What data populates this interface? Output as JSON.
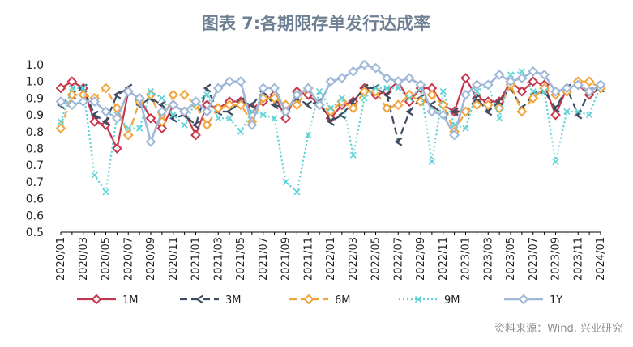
{
  "chart_data": {
    "type": "line",
    "title": "图表 7:各期限存单发行达成率",
    "source": "资料来源：Wind, 兴业研究",
    "ylim": [
      0.5,
      1.0
    ],
    "yticks": [
      "1.0",
      "1.0",
      "0.9",
      "0.9",
      "0.8",
      "0.8",
      "0.7",
      "0.7",
      "0.6",
      "0.6",
      "0.5"
    ],
    "grid": false,
    "legend_position": "bottom",
    "x": [
      "2020/01",
      "2020/02",
      "2020/03",
      "2020/04",
      "2020/05",
      "2020/06",
      "2020/07",
      "2020/08",
      "2020/09",
      "2020/10",
      "2020/11",
      "2020/12",
      "2021/01",
      "2021/02",
      "2021/03",
      "2021/04",
      "2021/05",
      "2021/06",
      "2021/07",
      "2021/08",
      "2021/09",
      "2021/10",
      "2021/11",
      "2021/12",
      "2022/01",
      "2022/02",
      "2022/03",
      "2022/04",
      "2022/05",
      "2022/06",
      "2022/07",
      "2022/08",
      "2022/09",
      "2022/10",
      "2022/11",
      "2022/12",
      "2023/01",
      "2023/02",
      "2023/03",
      "2023/04",
      "2023/05",
      "2023/06",
      "2023/07",
      "2023/08",
      "2023/09",
      "2023/10",
      "2023/11",
      "2023/12",
      "2024/01"
    ],
    "xtick_labels": [
      "2020/01",
      "2020/03",
      "2020/05",
      "2020/07",
      "2020/09",
      "2020/11",
      "2021/01",
      "2021/03",
      "2021/05",
      "2021/07",
      "2021/09",
      "2021/11",
      "2022/01",
      "2022/03",
      "2022/05",
      "2022/07",
      "2022/09",
      "2022/11",
      "2023/01",
      "2023/03",
      "2023/05",
      "2023/07",
      "2023/09",
      "2023/11",
      "2024/01"
    ],
    "series": [
      {
        "name": "1M",
        "color": "#c8364c",
        "dash": "",
        "marker": "diamond",
        "values": [
          0.93,
          0.95,
          0.93,
          0.83,
          0.82,
          0.75,
          0.92,
          0.9,
          0.84,
          0.81,
          0.88,
          0.86,
          0.79,
          0.88,
          0.87,
          0.89,
          0.89,
          0.87,
          0.89,
          0.91,
          0.84,
          0.92,
          0.91,
          0.88,
          0.84,
          0.88,
          0.89,
          0.93,
          0.91,
          0.92,
          0.95,
          0.89,
          0.93,
          0.93,
          0.88,
          0.86,
          0.96,
          0.9,
          0.89,
          0.89,
          0.95,
          0.92,
          0.95,
          0.94,
          0.85,
          0.93,
          0.94,
          0.91,
          0.93
        ]
      },
      {
        "name": "3M",
        "color": "#3e4d63",
        "dash": "9,5",
        "marker": "chevron",
        "values": [
          0.88,
          0.91,
          0.93,
          0.85,
          0.83,
          0.91,
          0.93,
          0.88,
          0.9,
          0.88,
          0.84,
          0.85,
          0.82,
          0.93,
          0.86,
          0.86,
          0.89,
          0.88,
          0.92,
          0.88,
          0.87,
          0.9,
          0.88,
          0.89,
          0.83,
          0.85,
          0.89,
          0.93,
          0.93,
          0.91,
          0.77,
          0.86,
          0.9,
          0.88,
          0.85,
          0.86,
          0.86,
          0.9,
          0.86,
          0.89,
          0.93,
          0.87,
          0.91,
          0.92,
          0.87,
          0.93,
          0.85,
          0.92,
          0.93
        ]
      },
      {
        "name": "6M",
        "color": "#f2a33a",
        "dash": "9,5",
        "marker": "diamond",
        "values": [
          0.81,
          0.91,
          0.91,
          0.9,
          0.93,
          0.87,
          0.79,
          0.89,
          0.91,
          0.83,
          0.91,
          0.91,
          0.88,
          0.82,
          0.87,
          0.88,
          0.88,
          0.83,
          0.9,
          0.9,
          0.88,
          0.88,
          0.93,
          0.88,
          0.86,
          0.89,
          0.87,
          0.92,
          0.92,
          0.87,
          0.88,
          0.91,
          0.89,
          0.91,
          0.88,
          0.8,
          0.86,
          0.88,
          0.88,
          0.87,
          0.94,
          0.86,
          0.9,
          0.93,
          0.91,
          0.92,
          0.95,
          0.95,
          0.93
        ]
      },
      {
        "name": "9M",
        "color": "#5ed2d6",
        "dash": "2,3",
        "marker": "x",
        "values": [
          0.83,
          0.93,
          0.93,
          0.67,
          0.62,
          0.85,
          0.81,
          0.81,
          0.92,
          0.9,
          0.85,
          0.82,
          0.89,
          0.91,
          0.84,
          0.84,
          0.8,
          0.86,
          0.85,
          0.84,
          0.65,
          0.62,
          0.79,
          0.92,
          0.87,
          0.9,
          0.73,
          0.9,
          0.93,
          0.93,
          0.93,
          0.9,
          0.93,
          0.71,
          0.92,
          0.82,
          0.81,
          0.92,
          0.94,
          0.84,
          0.97,
          0.98,
          0.92,
          0.92,
          0.71,
          0.86,
          0.86,
          0.85,
          0.94
        ]
      },
      {
        "name": "1Y",
        "color": "#9fb8d8",
        "dash": "",
        "marker": "diamond",
        "values": [
          0.89,
          0.88,
          0.89,
          0.89,
          0.86,
          0.84,
          0.92,
          0.9,
          0.77,
          0.86,
          0.88,
          0.86,
          0.89,
          0.86,
          0.93,
          0.95,
          0.95,
          0.82,
          0.93,
          0.93,
          0.86,
          0.91,
          0.93,
          0.88,
          0.95,
          0.96,
          0.98,
          1.0,
          0.99,
          0.96,
          0.95,
          0.96,
          0.94,
          0.86,
          0.85,
          0.79,
          0.91,
          0.94,
          0.94,
          0.97,
          0.95,
          0.96,
          0.98,
          0.97,
          0.92,
          0.93,
          0.94,
          0.92,
          0.94
        ]
      }
    ]
  }
}
